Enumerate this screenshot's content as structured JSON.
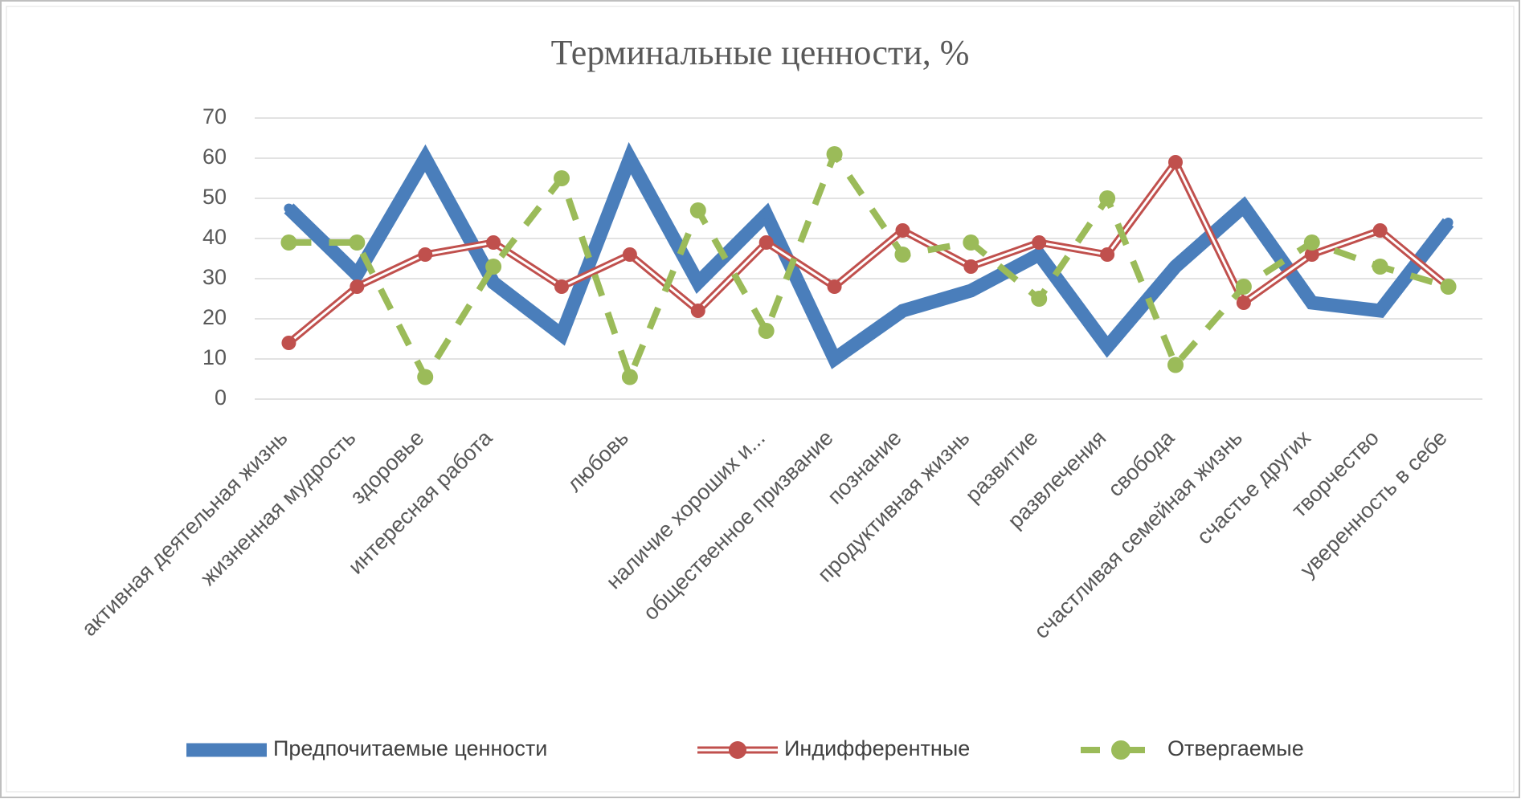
{
  "chart_data": {
    "type": "line",
    "title": "Терминальные ценности, %",
    "categories": [
      "активная деятельная жизнь",
      "жизненная мудрость",
      "здоровье",
      "интересная работа",
      null,
      "любовь",
      null,
      "наличие хороших и...",
      "общественное призвание",
      "познание",
      "продуктивная жизнь",
      "развитие",
      "развлечения",
      "свобода",
      "счастливая семейная жизнь",
      "счастье других",
      "творчество",
      "уверенность в себе"
    ],
    "series": [
      {
        "name": "Предпочитаемые ценности",
        "color": "#4a7ebb",
        "values": [
          47.5,
          31,
          60,
          29,
          16,
          60,
          29,
          46,
          10,
          22,
          27,
          36,
          13,
          33,
          48,
          24,
          22,
          44
        ]
      },
      {
        "name": "Индифферентные",
        "color": "#c0504d",
        "values": [
          14,
          28,
          36,
          39,
          28,
          36,
          22,
          39,
          28,
          42,
          33,
          39,
          36,
          59,
          24,
          36,
          42,
          28
        ]
      },
      {
        "name": "Отвергаемые",
        "color": "#9bbb59",
        "values": [
          39,
          39,
          5.5,
          33,
          55,
          5.5,
          47,
          17,
          61,
          36,
          39,
          25,
          50,
          8.5,
          28,
          39,
          33,
          28
        ]
      }
    ],
    "ylim": [
      0,
      70
    ],
    "yticks": [
      0,
      10,
      20,
      30,
      40,
      50,
      60,
      70
    ],
    "grid": true,
    "legend": "bottom"
  }
}
